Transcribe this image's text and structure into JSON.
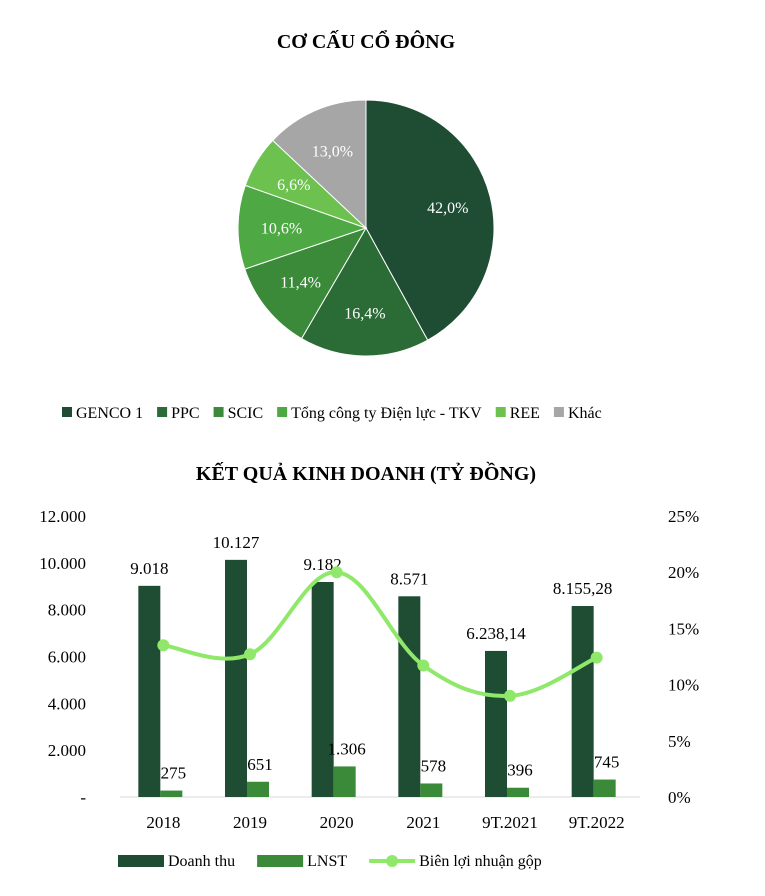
{
  "pie": {
    "title": "CƠ CẤU CỔ ĐÔNG",
    "colors": {
      "text_on_slice": "#ffffff"
    }
  },
  "bar": {
    "title": "KẾT QUẢ KINH DOANH (TỶ ĐỒNG)"
  },
  "chart_data": [
    {
      "type": "pie",
      "title": "CƠ CẤU CỔ ĐÔNG",
      "slices": [
        {
          "label": "GENCO 1",
          "value": 42.0,
          "display": "42,0%",
          "color": "#1e4d33"
        },
        {
          "label": "PPC",
          "value": 16.4,
          "display": "16,4%",
          "color": "#2b6b35"
        },
        {
          "label": "SCIC",
          "value": 11.4,
          "display": "11,4%",
          "color": "#3a8a3a"
        },
        {
          "label": "Tổng công ty Điện lực - TKV",
          "value": 10.6,
          "display": "10,6%",
          "color": "#4ea843"
        },
        {
          "label": "REE",
          "value": 6.6,
          "display": "6,6%",
          "color": "#6cc14f"
        },
        {
          "label": "Khác",
          "value": 13.0,
          "display": "13,0%",
          "color": "#a6a6a6"
        }
      ],
      "legend_position": "bottom"
    },
    {
      "type": "bar",
      "title": "KẾT QUẢ KINH DOANH (TỶ ĐỒNG)",
      "categories": [
        "2018",
        "2019",
        "2020",
        "2021",
        "9T.2021",
        "9T.2022"
      ],
      "series": [
        {
          "name": "Doanh thu",
          "type": "bar",
          "axis": "left",
          "color": "#1e4d33",
          "values": [
            9018,
            10127,
            9182,
            8571,
            6238.14,
            8155.28
          ],
          "labels": [
            "9.018",
            "10.127",
            "9.182",
            "8.571",
            "6.238,14",
            "8.155,28"
          ]
        },
        {
          "name": "LNST",
          "type": "bar",
          "axis": "left",
          "color": "#3a8a3a",
          "values": [
            275,
            651,
            1306,
            578,
            396,
            745
          ],
          "labels": [
            "275",
            "651",
            "1.306",
            "578",
            "396",
            "745"
          ]
        },
        {
          "name": "Biên lợi nhuận gộp",
          "type": "line",
          "axis": "right",
          "color": "#90e86a",
          "values": [
            13.5,
            12.7,
            20.0,
            11.7,
            9.0,
            12.4
          ]
        }
      ],
      "y_left": {
        "range": [
          0,
          12000
        ],
        "ticks": [
          "-",
          "2.000",
          "4.000",
          "6.000",
          "8.000",
          "10.000",
          "12.000"
        ]
      },
      "y_right": {
        "range": [
          0,
          25
        ],
        "ticks": [
          "0%",
          "5%",
          "10%",
          "15%",
          "20%",
          "25%"
        ]
      },
      "grid": false,
      "legend_position": "bottom"
    }
  ]
}
